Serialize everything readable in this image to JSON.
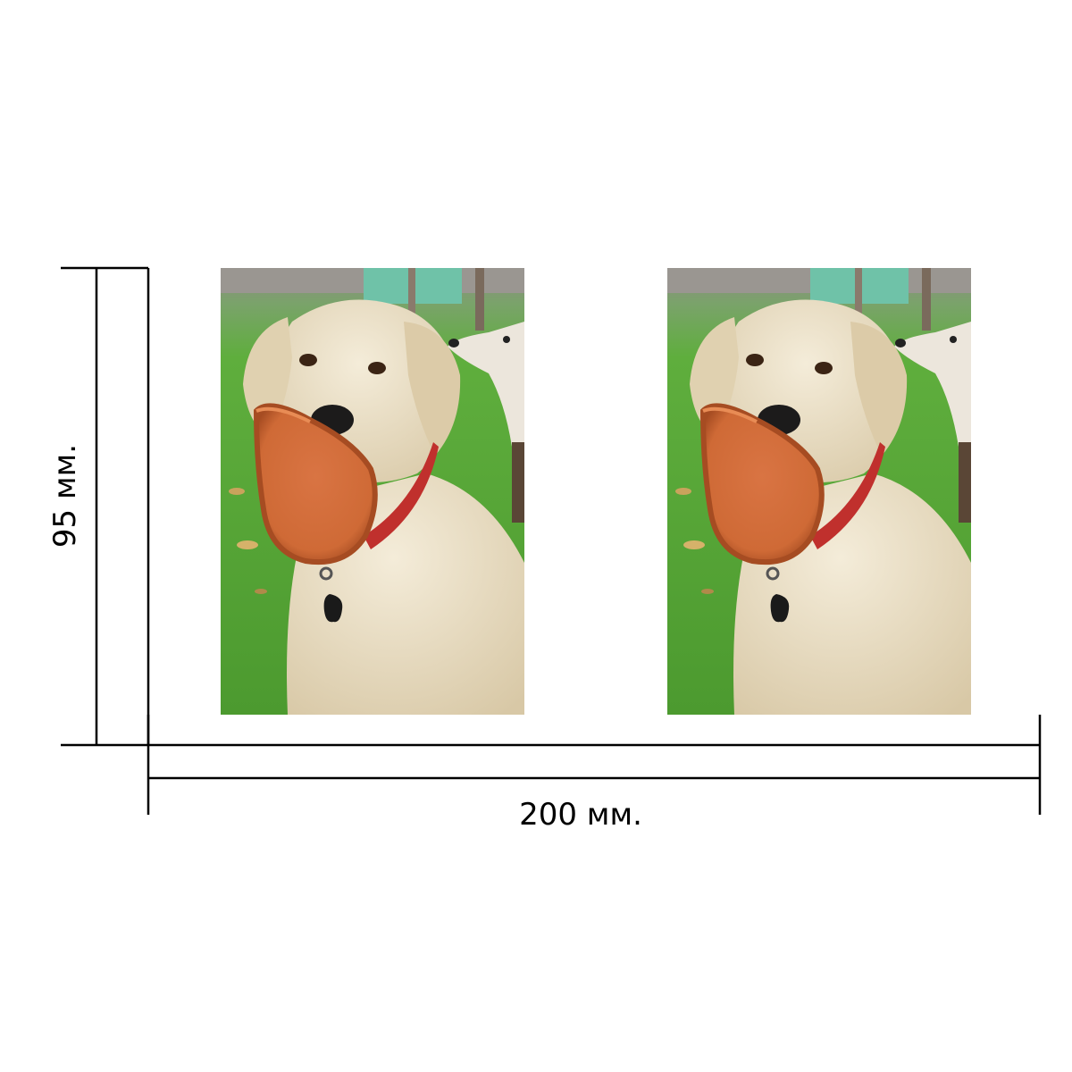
{
  "dimensions": {
    "height_label": "95 мм.",
    "width_label": "200 мм."
  },
  "photos": [
    {
      "subject": "golden-retriever-with-frisbee"
    },
    {
      "subject": "golden-retriever-with-frisbee"
    }
  ],
  "colors": {
    "line": "#000000",
    "grass": "#5aa83a",
    "fur": "#eadfc6",
    "frisbee": "#e07a43",
    "collar": "#c0302d"
  }
}
